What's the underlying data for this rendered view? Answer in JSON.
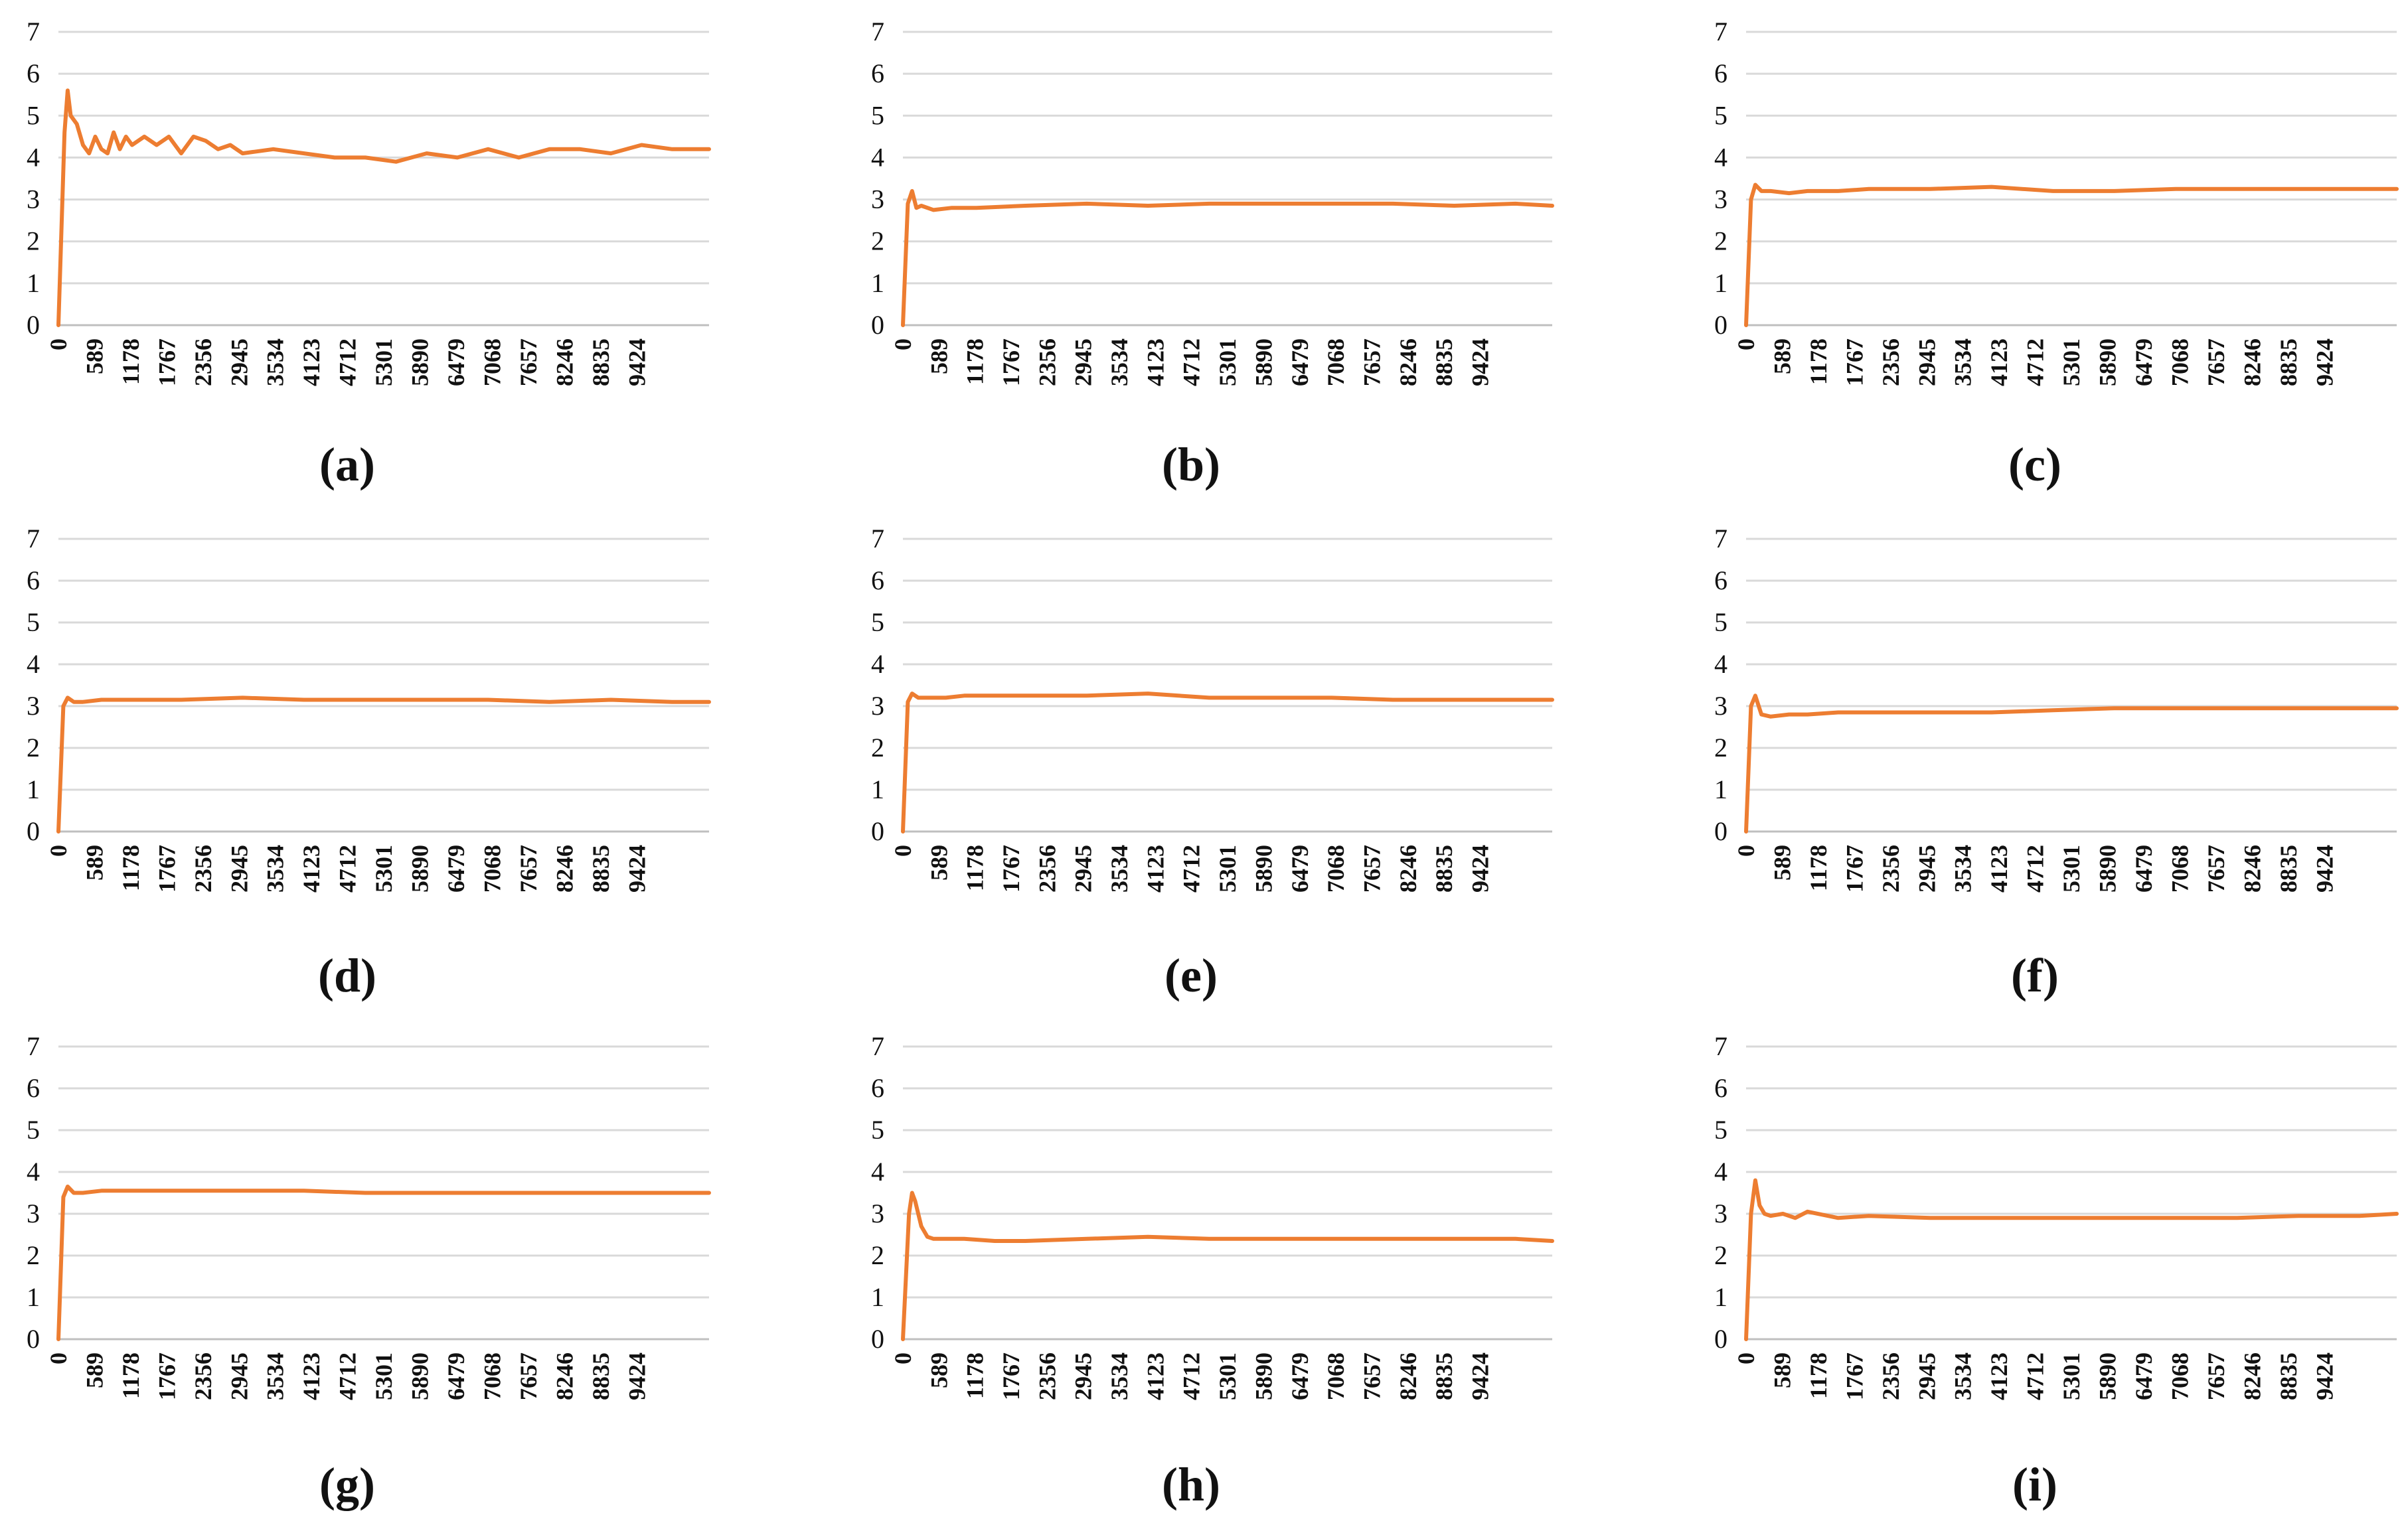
{
  "colors": {
    "series": "#ED7D31",
    "grid": "#D9D9D9"
  },
  "chart_data": [
    {
      "panel": "(a)",
      "type": "line",
      "x_min": 0,
      "x_max": 10600,
      "ylim": [
        0,
        7
      ],
      "y_ticks": [
        0,
        1,
        2,
        3,
        4,
        5,
        6,
        7
      ],
      "x_ticks": [
        0,
        589,
        1178,
        1767,
        2356,
        2945,
        3534,
        4123,
        4712,
        5301,
        5890,
        6479,
        7068,
        7657,
        8246,
        8835,
        9424
      ],
      "series": [
        {
          "x": [
            0,
            100,
            150,
            200,
            300,
            400,
            500,
            600,
            700,
            800,
            900,
            1000,
            1100,
            1200,
            1400,
            1600,
            1800,
            2000,
            2200,
            2400,
            2600,
            2800,
            3000,
            3500,
            4000,
            4500,
            5000,
            5500,
            6000,
            6500,
            7000,
            7500,
            8000,
            8500,
            9000,
            9500,
            10000,
            10600
          ],
          "y": [
            0,
            4.6,
            5.6,
            5.0,
            4.8,
            4.3,
            4.1,
            4.5,
            4.2,
            4.1,
            4.6,
            4.2,
            4.5,
            4.3,
            4.5,
            4.3,
            4.5,
            4.1,
            4.5,
            4.4,
            4.2,
            4.3,
            4.1,
            4.2,
            4.1,
            4.0,
            4.0,
            3.9,
            4.1,
            4.0,
            4.2,
            4.0,
            4.2,
            4.2,
            4.1,
            4.3,
            4.2,
            4.2
          ]
        }
      ]
    },
    {
      "panel": "(b)",
      "type": "line",
      "x_min": 0,
      "x_max": 10600,
      "ylim": [
        0,
        7
      ],
      "y_ticks": [
        0,
        1,
        2,
        3,
        4,
        5,
        6,
        7
      ],
      "x_ticks": [
        0,
        589,
        1178,
        1767,
        2356,
        2945,
        3534,
        4123,
        4712,
        5301,
        5890,
        6479,
        7068,
        7657,
        8246,
        8835,
        9424
      ],
      "series": [
        {
          "x": [
            0,
            80,
            150,
            220,
            300,
            500,
            800,
            1200,
            2000,
            3000,
            4000,
            5000,
            6000,
            7000,
            8000,
            9000,
            10000,
            10600
          ],
          "y": [
            0,
            2.9,
            3.2,
            2.8,
            2.85,
            2.75,
            2.8,
            2.8,
            2.85,
            2.9,
            2.85,
            2.9,
            2.9,
            2.9,
            2.9,
            2.85,
            2.9,
            2.85
          ]
        }
      ]
    },
    {
      "panel": "(c)",
      "type": "line",
      "x_min": 0,
      "x_max": 10600,
      "ylim": [
        0,
        7
      ],
      "y_ticks": [
        0,
        1,
        2,
        3,
        4,
        5,
        6,
        7
      ],
      "x_ticks": [
        0,
        589,
        1178,
        1767,
        2356,
        2945,
        3534,
        4123,
        4712,
        5301,
        5890,
        6479,
        7068,
        7657,
        8246,
        8835,
        9424
      ],
      "series": [
        {
          "x": [
            0,
            80,
            150,
            250,
            400,
            700,
            1000,
            1500,
            2000,
            3000,
            4000,
            5000,
            6000,
            7000,
            8000,
            9000,
            10000,
            10600
          ],
          "y": [
            0,
            3.0,
            3.35,
            3.2,
            3.2,
            3.15,
            3.2,
            3.2,
            3.25,
            3.25,
            3.3,
            3.2,
            3.2,
            3.25,
            3.25,
            3.25,
            3.25,
            3.25
          ]
        }
      ]
    },
    {
      "panel": "(d)",
      "type": "line",
      "x_min": 0,
      "x_max": 10600,
      "ylim": [
        0,
        7
      ],
      "y_ticks": [
        0,
        1,
        2,
        3,
        4,
        5,
        6,
        7
      ],
      "x_ticks": [
        0,
        589,
        1178,
        1767,
        2356,
        2945,
        3534,
        4123,
        4712,
        5301,
        5890,
        6479,
        7068,
        7657,
        8246,
        8835,
        9424
      ],
      "series": [
        {
          "x": [
            0,
            80,
            150,
            250,
            400,
            700,
            1000,
            2000,
            3000,
            4000,
            5000,
            6000,
            7000,
            8000,
            9000,
            10000,
            10600
          ],
          "y": [
            0,
            3.0,
            3.2,
            3.1,
            3.1,
            3.15,
            3.15,
            3.15,
            3.2,
            3.15,
            3.15,
            3.15,
            3.15,
            3.1,
            3.15,
            3.1,
            3.1
          ]
        }
      ]
    },
    {
      "panel": "(e)",
      "type": "line",
      "x_min": 0,
      "x_max": 10600,
      "ylim": [
        0,
        7
      ],
      "y_ticks": [
        0,
        1,
        2,
        3,
        4,
        5,
        6,
        7
      ],
      "x_ticks": [
        0,
        589,
        1178,
        1767,
        2356,
        2945,
        3534,
        4123,
        4712,
        5301,
        5890,
        6479,
        7068,
        7657,
        8246,
        8835,
        9424
      ],
      "series": [
        {
          "x": [
            0,
            80,
            150,
            250,
            400,
            700,
            1000,
            2000,
            3000,
            4000,
            4500,
            5000,
            6000,
            7000,
            8000,
            9000,
            10000,
            10600
          ],
          "y": [
            0,
            3.1,
            3.3,
            3.2,
            3.2,
            3.2,
            3.25,
            3.25,
            3.25,
            3.3,
            3.25,
            3.2,
            3.2,
            3.2,
            3.15,
            3.15,
            3.15,
            3.15
          ]
        }
      ]
    },
    {
      "panel": "(f)",
      "type": "line",
      "x_min": 0,
      "x_max": 10600,
      "ylim": [
        0,
        7
      ],
      "y_ticks": [
        0,
        1,
        2,
        3,
        4,
        5,
        6,
        7
      ],
      "x_ticks": [
        0,
        589,
        1178,
        1767,
        2356,
        2945,
        3534,
        4123,
        4712,
        5301,
        5890,
        6479,
        7068,
        7657,
        8246,
        8835,
        9424
      ],
      "series": [
        {
          "x": [
            0,
            80,
            150,
            250,
            400,
            700,
            1000,
            1500,
            2000,
            3000,
            4000,
            5000,
            6000,
            7000,
            8000,
            9000,
            10000,
            10600
          ],
          "y": [
            0,
            3.0,
            3.25,
            2.8,
            2.75,
            2.8,
            2.8,
            2.85,
            2.85,
            2.85,
            2.85,
            2.9,
            2.95,
            2.95,
            2.95,
            2.95,
            2.95,
            2.95
          ]
        }
      ]
    },
    {
      "panel": "(g)",
      "type": "line",
      "x_min": 0,
      "x_max": 10600,
      "ylim": [
        0,
        7
      ],
      "y_ticks": [
        0,
        1,
        2,
        3,
        4,
        5,
        6,
        7
      ],
      "x_ticks": [
        0,
        589,
        1178,
        1767,
        2356,
        2945,
        3534,
        4123,
        4712,
        5301,
        5890,
        6479,
        7068,
        7657,
        8246,
        8835,
        9424
      ],
      "series": [
        {
          "x": [
            0,
            80,
            150,
            250,
            400,
            700,
            1000,
            2000,
            3000,
            4000,
            5000,
            6000,
            7000,
            8000,
            9000,
            10000,
            10600
          ],
          "y": [
            0,
            3.4,
            3.65,
            3.5,
            3.5,
            3.55,
            3.55,
            3.55,
            3.55,
            3.55,
            3.5,
            3.5,
            3.5,
            3.5,
            3.5,
            3.5,
            3.5
          ]
        }
      ]
    },
    {
      "panel": "(h)",
      "type": "line",
      "x_min": 0,
      "x_max": 10600,
      "ylim": [
        0,
        7
      ],
      "y_ticks": [
        0,
        1,
        2,
        3,
        4,
        5,
        6,
        7
      ],
      "x_ticks": [
        0,
        589,
        1178,
        1767,
        2356,
        2945,
        3534,
        4123,
        4712,
        5301,
        5890,
        6479,
        7068,
        7657,
        8246,
        8835,
        9424
      ],
      "series": [
        {
          "x": [
            0,
            100,
            150,
            200,
            300,
            400,
            500,
            700,
            1000,
            1500,
            2000,
            3000,
            4000,
            5000,
            6000,
            7000,
            8000,
            9000,
            10000,
            10600
          ],
          "y": [
            0,
            3.0,
            3.5,
            3.3,
            2.7,
            2.45,
            2.4,
            2.4,
            2.4,
            2.35,
            2.35,
            2.4,
            2.45,
            2.4,
            2.4,
            2.4,
            2.4,
            2.4,
            2.4,
            2.35
          ]
        }
      ]
    },
    {
      "panel": "(i)",
      "type": "line",
      "x_min": 0,
      "x_max": 10600,
      "ylim": [
        0,
        7
      ],
      "y_ticks": [
        0,
        1,
        2,
        3,
        4,
        5,
        6,
        7
      ],
      "x_ticks": [
        0,
        589,
        1178,
        1767,
        2356,
        2945,
        3534,
        4123,
        4712,
        5301,
        5890,
        6479,
        7068,
        7657,
        8246,
        8835,
        9424
      ],
      "series": [
        {
          "x": [
            0,
            80,
            150,
            220,
            300,
            400,
            600,
            800,
            1000,
            1500,
            2000,
            3000,
            4000,
            5000,
            6000,
            7000,
            8000,
            9000,
            10000,
            10600
          ],
          "y": [
            0,
            3.0,
            3.8,
            3.2,
            3.0,
            2.95,
            3.0,
            2.9,
            3.05,
            2.9,
            2.95,
            2.9,
            2.9,
            2.9,
            2.9,
            2.9,
            2.9,
            2.95,
            2.95,
            3.0
          ]
        }
      ]
    }
  ]
}
